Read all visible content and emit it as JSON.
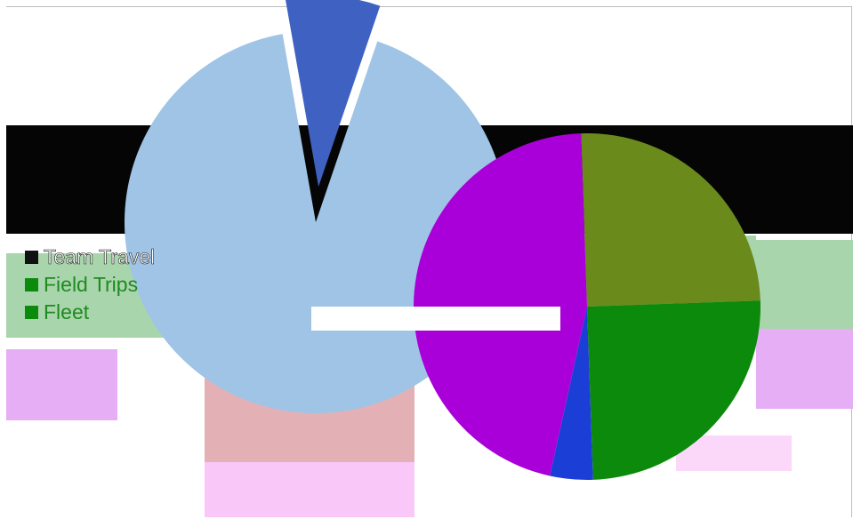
{
  "chart_data": [
    {
      "type": "pie",
      "title": "",
      "slices": [
        {
          "label": "",
          "value": 8,
          "color": "#3f62c2"
        },
        {
          "label": "",
          "value": 92,
          "color": "#9fc4e6"
        }
      ]
    },
    {
      "type": "pie",
      "title": "",
      "slices": [
        {
          "label": "",
          "value": 25,
          "color": "#6b8a1c"
        },
        {
          "label": "Team Travel",
          "value": 25,
          "color": "#0b8a0b"
        },
        {
          "label": "Field Trips",
          "value": 4,
          "color": "#1b3fd6"
        },
        {
          "label": "Fleet",
          "value": 46,
          "color": "#a900d9"
        }
      ]
    }
  ],
  "legend": {
    "items": [
      {
        "label": "Team Travel",
        "color": "#111111"
      },
      {
        "label": "Field Trips",
        "color": "#0b8a0b"
      },
      {
        "label": "Fleet",
        "color": "#0b8a0b"
      }
    ]
  }
}
